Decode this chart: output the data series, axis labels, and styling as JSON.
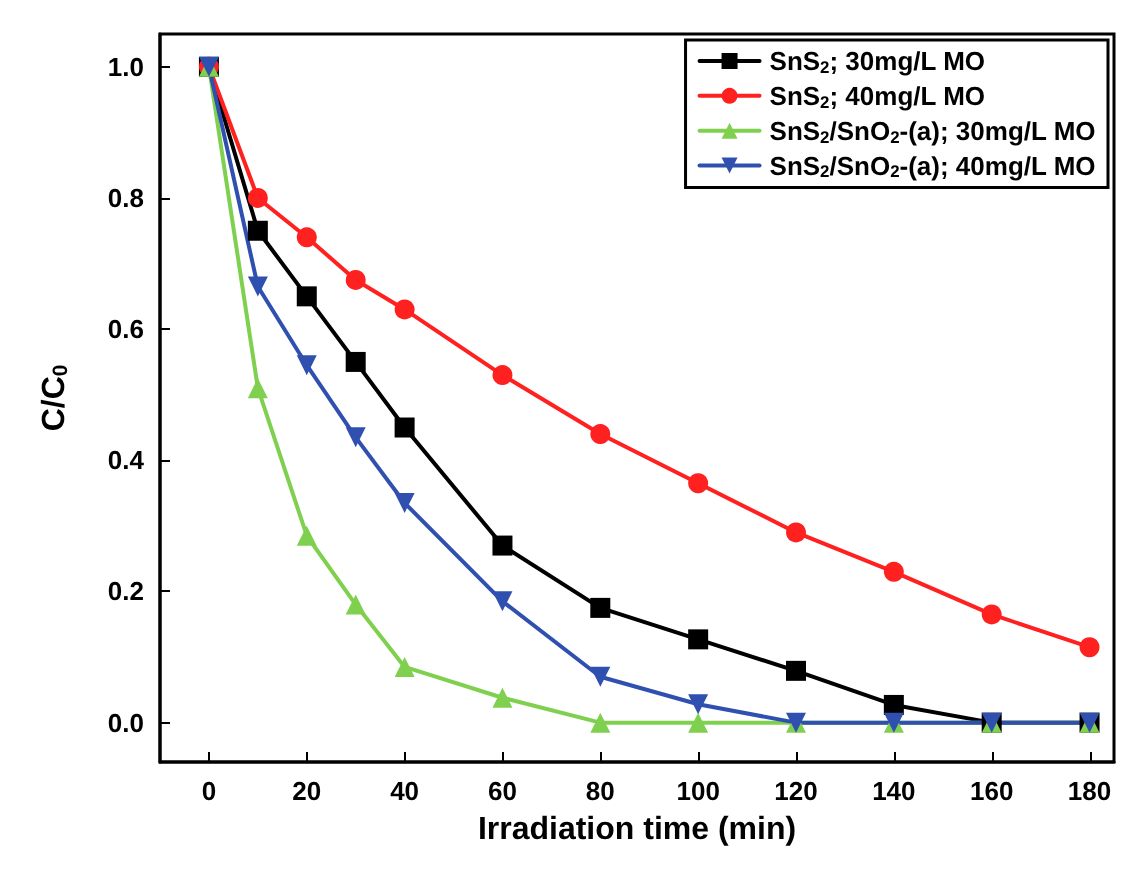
{
  "chart_data": {
    "type": "line",
    "xlabel": "Irradiation time (min)",
    "ylabel": "C/C$_{0}$",
    "x": [
      0,
      10,
      20,
      30,
      40,
      60,
      80,
      100,
      120,
      140,
      160,
      180
    ],
    "series": [
      {
        "name": "SnS$_{2}$; 30mg/L MO",
        "color": "#000000",
        "marker": "square",
        "values": [
          1.0,
          0.75,
          0.65,
          0.55,
          0.45,
          0.27,
          0.175,
          0.127,
          0.079,
          0.027,
          0,
          0
        ]
      },
      {
        "name": "SnS$_{2}$; 40mg/L MO",
        "color": "#ff2020",
        "marker": "circle",
        "values": [
          1.0,
          0.8,
          0.74,
          0.675,
          0.63,
          0.53,
          0.44,
          0.365,
          0.29,
          0.23,
          0.165,
          0.115
        ]
      },
      {
        "name": "SnS$_{2}$/SnO$_{2}$-(a); 30mg/L MO",
        "color": "#80d050",
        "marker": "triangle",
        "values": [
          1.0,
          0.51,
          0.285,
          0.18,
          0.085,
          0.038,
          0,
          0,
          0,
          0,
          0,
          0
        ]
      },
      {
        "name": "SnS$_{2}$/SnO$_{2}$-(a); 40mg/L MO",
        "color": "#3050b0",
        "marker": "triangle-down",
        "values": [
          1.0,
          0.665,
          0.545,
          0.435,
          0.335,
          0.185,
          0.07,
          0.028,
          0,
          0,
          0,
          0
        ]
      }
    ],
    "xlim": [
      -10,
      185
    ],
    "ylim": [
      -0.06,
      1.05
    ],
    "xticks": [
      0,
      20,
      40,
      60,
      80,
      100,
      120,
      140,
      160,
      180
    ],
    "yticks": [
      {
        "value": 0,
        "label": "0.0"
      },
      {
        "value": 0.2,
        "label": "0.2"
      },
      {
        "value": 0.4,
        "label": "0.4"
      },
      {
        "value": 0.6,
        "label": "0.6"
      },
      {
        "value": 0.8,
        "label": "0.8"
      },
      {
        "value": 1.0,
        "label": "1.0"
      }
    ],
    "grid": false,
    "legend": "top right",
    "line_style": "solid"
  }
}
